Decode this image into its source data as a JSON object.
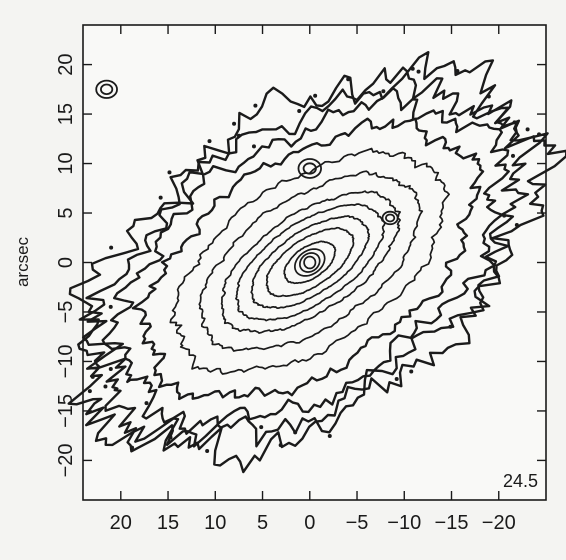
{
  "chart_data": {
    "type": "contour",
    "title": "",
    "xlabel": "",
    "ylabel": "arcsec",
    "xlim": [
      24,
      -25
    ],
    "ylim": [
      -24,
      24
    ],
    "x_ticks": [
      20,
      15,
      10,
      5,
      0,
      -5,
      -10,
      -15,
      -20
    ],
    "y_ticks": [
      20,
      15,
      10,
      5,
      0,
      -5,
      -10,
      -15,
      -20
    ],
    "x_tick_labels": [
      "20",
      "15",
      "10",
      "5",
      "0",
      "−5",
      "−10",
      "−15",
      "−20"
    ],
    "y_tick_labels": [
      "20",
      "15",
      "10",
      "5",
      "0",
      "−5",
      "−10",
      "−15",
      "−20"
    ],
    "annotation": "24.5",
    "annotation_position": "bottom-right",
    "center": [
      0,
      0
    ],
    "position_angle_deg": -32,
    "contours": [
      {
        "a": 0.6,
        "b": 0.6,
        "noise": 0.0
      },
      {
        "a": 1.1,
        "b": 0.9,
        "noise": 0.0
      },
      {
        "a": 1.7,
        "b": 1.2,
        "noise": 0.0
      },
      {
        "a": 3.0,
        "b": 1.6,
        "noise": 0.02
      },
      {
        "a": 5.2,
        "b": 2.4,
        "noise": 0.02
      },
      {
        "a": 7.0,
        "b": 3.2,
        "noise": 0.02
      },
      {
        "a": 8.8,
        "b": 4.1,
        "noise": 0.02
      },
      {
        "a": 10.6,
        "b": 5.0,
        "noise": 0.025
      },
      {
        "a": 13.0,
        "b": 6.6,
        "noise": 0.03
      },
      {
        "a": 16.0,
        "b": 8.4,
        "noise": 0.04
      },
      {
        "a": 19.5,
        "b": 10.6,
        "noise": 0.06
      },
      {
        "a": 22.5,
        "b": 12.6,
        "noise": 0.08
      },
      {
        "a": 25.0,
        "b": 14.0,
        "noise": 0.1
      },
      {
        "a": 26.5,
        "b": 15.0,
        "noise": 0.12
      }
    ],
    "knots": [
      {
        "x": 0,
        "y": 9.5,
        "r": 1.2
      },
      {
        "x": 21.5,
        "y": 17.5,
        "r": 1.1
      },
      {
        "x": -8.5,
        "y": 4.5,
        "r": 0.8
      }
    ],
    "grid": false
  }
}
